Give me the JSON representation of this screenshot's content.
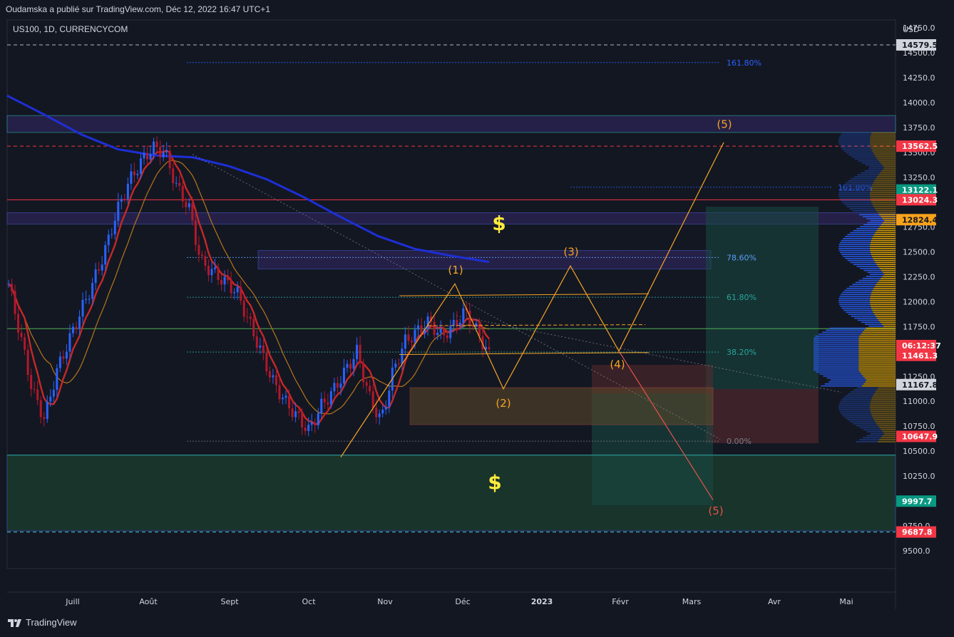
{
  "header": {
    "publisher_line": "Oudamska a publié sur TradingView.com, Déc 12, 2022 16:47 UTC+1",
    "symbol_line": "US100, 1D, CURRENCYCOM",
    "currency": "USD"
  },
  "footer": {
    "brand": "TradingView",
    "logo_icon": "tradingview-logo-icon"
  },
  "colors": {
    "background": "#131722",
    "candle_up": "#2962ff",
    "candle_down": "#b2182b",
    "ma_fast": "#c62828",
    "ma_medium": "#b8751a",
    "ma_slow": "#1e2fd6",
    "wave_up": "#f5a524",
    "wave_down": "#e5534b",
    "green_zone": "#1b3a2c",
    "purple_zone": "#2a2352"
  },
  "chart_data": {
    "type": "candlestick",
    "x_axis_ticks": [
      "Juill",
      "Août",
      "Sept",
      "Oct",
      "Nov",
      "Déc",
      "2023",
      "Févr",
      "Mars",
      "Avr",
      "Mai"
    ],
    "y_axis_ticks": [
      14750,
      14500,
      14250,
      14000,
      13750,
      13500,
      13250,
      13000,
      12750,
      12500,
      12250,
      12000,
      11750,
      11500,
      11250,
      11000,
      10750,
      10500,
      10250,
      9750,
      9500
    ],
    "y_axis_tick_labels": [
      "14750.0",
      "14500.0",
      "14250.0",
      "14000.0",
      "13750.0",
      "13500.0",
      "13250.0",
      "13000.0",
      "12750.0",
      "12500.0",
      "12250.0",
      "12000.0",
      "11750.0",
      "11500.0",
      "11250.0",
      "11000.0",
      "10750.0",
      "10500.0",
      "10250.0",
      "9750.0",
      "9500.0"
    ],
    "ylim": [
      9320,
      14830
    ],
    "price_tags": [
      {
        "label": "14579.5",
        "value": 14579.5,
        "color": "#d1d4dc",
        "text_color": "#131722"
      },
      {
        "label": "13562.5",
        "value": 13562.5,
        "color": "#f23645",
        "text_color": "#ffffff"
      },
      {
        "label": "13122.1",
        "value": 13122.1,
        "color": "#089981",
        "text_color": "#ffffff"
      },
      {
        "label": "13024.3",
        "value": 13024.3,
        "color": "#f23645",
        "text_color": "#ffffff"
      },
      {
        "label": "12824.4",
        "value": 12824.4,
        "color": "#f7a21b",
        "text_color": "#131722"
      },
      {
        "label": "06:12:37",
        "value": 11560,
        "color": "#f23645",
        "text_color": "#ffffff"
      },
      {
        "label": "11461.3",
        "value": 11461.3,
        "color": "#f23645",
        "text_color": "#ffffff"
      },
      {
        "label": "11167.8",
        "value": 11167.8,
        "color": "#d1d4dc",
        "text_color": "#131722"
      },
      {
        "label": "10647.9",
        "value": 10647.9,
        "color": "#f23645",
        "text_color": "#ffffff"
      },
      {
        "label": "9997.7",
        "value": 9997.7,
        "color": "#089981",
        "text_color": "#ffffff"
      },
      {
        "label": "9687.8",
        "value": 9687.8,
        "color": "#f23645",
        "text_color": "#ffffff"
      }
    ],
    "fibonacci_levels": [
      {
        "label": "161.80%",
        "value": 14402,
        "color": "#2962ff"
      },
      {
        "label": "161.80%",
        "value": 13150,
        "color": "#2962ff"
      },
      {
        "label": "78.60%",
        "value": 12445,
        "color": "#5b9cf6"
      },
      {
        "label": "61.80%",
        "value": 12045,
        "color": "#26a69a"
      },
      {
        "label": "38.20%",
        "value": 11495,
        "color": "#26a69a"
      },
      {
        "label": "0.00%",
        "value": 10600,
        "color": "#787b86"
      }
    ],
    "wave_labels_bullish": [
      "(1)",
      "(2)",
      "(3)",
      "(4)",
      "(5)"
    ],
    "wave_labels_bearish": [
      "(5)"
    ],
    "dollar_markers": [
      "$",
      "$"
    ],
    "horizontal_levels": [
      {
        "value": 14579.5,
        "style": "dashed",
        "color": "#b2b5be"
      },
      {
        "value": 13562.5,
        "style": "dashed",
        "color": "#f23645"
      },
      {
        "value": 13024.3,
        "style": "solid",
        "color": "#f23645"
      },
      {
        "value": 11730,
        "style": "solid",
        "color": "#4caf50"
      },
      {
        "value": 10460,
        "style": "solid",
        "color": "#26a69a"
      },
      {
        "value": 9687.8,
        "style": "dashed",
        "color": "#4dd0e1"
      }
    ],
    "zones": [
      {
        "name": "supply-zone-top",
        "top": 13870,
        "bottom": 13700
      },
      {
        "name": "supply-zone-mid",
        "top": 12895,
        "bottom": 12780
      },
      {
        "name": "fib-786-zone",
        "top": 12515,
        "bottom": 12330
      },
      {
        "name": "demand-zone-bottom",
        "top": 10460,
        "bottom": 9700
      }
    ],
    "candle_series": {
      "name": "US100",
      "start_price": 12180,
      "approx_closes": [
        12180,
        11650,
        11100,
        10820,
        11300,
        11600,
        11900,
        12180,
        12500,
        12900,
        13200,
        13400,
        13550,
        13500,
        13150,
        12950,
        12400,
        12300,
        12200,
        12100,
        11800,
        11500,
        11200,
        11000,
        10850,
        10700,
        10950,
        11100,
        11300,
        11500,
        11050,
        10800,
        11300,
        11600,
        11700,
        11800,
        11650,
        11750,
        11900,
        11700,
        11460
      ]
    }
  }
}
